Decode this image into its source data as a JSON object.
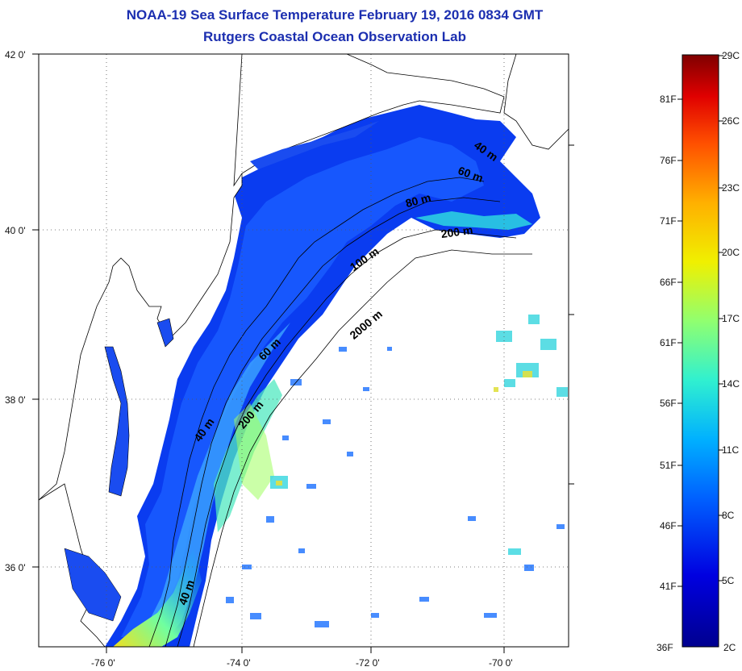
{
  "header": {
    "title": "NOAA-19 Sea Surface Temperature February 19, 2016 0834 GMT",
    "subtitle": "Rutgers Coastal Ocean Observation Lab"
  },
  "map": {
    "lat_labels": [
      "42 0'",
      "40 0'",
      "38 0'",
      "36 0'"
    ],
    "lon_labels": [
      "-76 0'",
      "-74 0'",
      "-72 0'",
      "-70 0'"
    ],
    "contour_labels": [
      "40 m",
      "60 m",
      "80 m",
      "200 m",
      "100 m",
      "2000 m",
      "60 m",
      "200 m",
      "40 m",
      "40 m"
    ]
  },
  "colorbar": {
    "fahrenheit_labels": [
      "81F",
      "76F",
      "71F",
      "66F",
      "61F",
      "56F",
      "51F",
      "46F",
      "41F",
      "36F"
    ],
    "celsius_labels": [
      "29C",
      "26C",
      "23C",
      "20C",
      "17C",
      "14C",
      "11C",
      "8C",
      "5C",
      "2C"
    ],
    "colors": [
      "#7f0000",
      "#d50000",
      "#ff4a00",
      "#ffa400",
      "#f7f700",
      "#9cff5c",
      "#3cffbc",
      "#00d4ff",
      "#0090ff",
      "#0040ff",
      "#0000c8",
      "#00008f"
    ]
  }
}
